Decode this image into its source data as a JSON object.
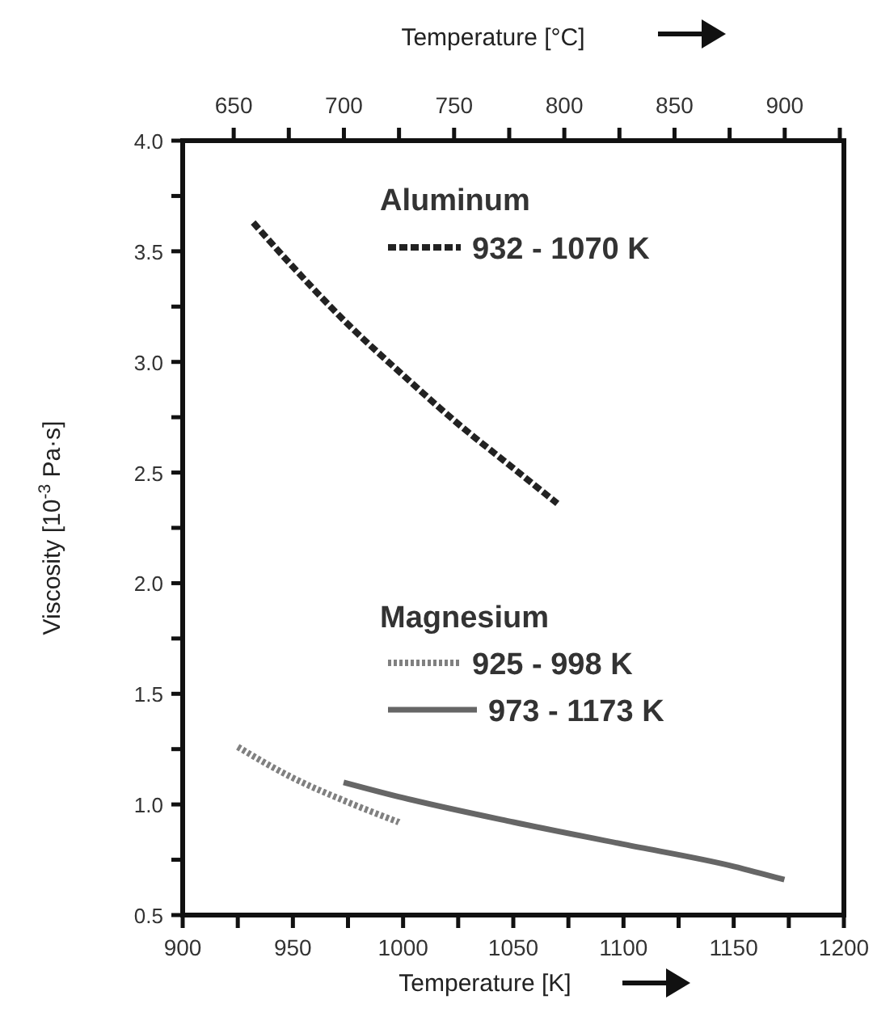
{
  "chart_data": {
    "type": "line",
    "xlabel": "Temperature [K]",
    "ylabel": "Viscosity [10$^{-3}$ Pa·s]",
    "x2label": "Temperature [°C]",
    "xlim": [
      900,
      1200
    ],
    "xticks": [
      900,
      {
        "value": 925,
        "label": null
      },
      950,
      {
        "value": 975,
        "label": null
      },
      1000,
      {
        "value": 1025,
        "label": null
      },
      1050,
      {
        "value": 1075,
        "label": null
      },
      1100,
      {
        "value": 1125,
        "label": null
      },
      1150,
      {
        "value": 1175,
        "label": null
      },
      1200
    ],
    "x2lim": [
      626.85,
      926.85
    ],
    "x2ticks": [
      650,
      {
        "value": 675,
        "label": null
      },
      700,
      {
        "value": 725,
        "label": null
      },
      750,
      {
        "value": 775,
        "label": null
      },
      800,
      {
        "value": 825,
        "label": null
      },
      850,
      {
        "value": 875,
        "label": null
      },
      900,
      {
        "value": 925,
        "label": null
      }
    ],
    "ylim": [
      0.5,
      4.0
    ],
    "yticks": [
      "0.5",
      {
        "value": 0.75,
        "label": null
      },
      {
        "value": 1.0,
        "label": "1.0"
      },
      {
        "value": 1.25,
        "label": null
      },
      1.5,
      {
        "value": 1.75,
        "label": null
      },
      {
        "value": 2.0,
        "label": "2.0"
      },
      {
        "value": 2.25,
        "label": null
      },
      2.5,
      {
        "value": 2.75,
        "label": null
      },
      {
        "value": 3.0,
        "label": "3.0"
      },
      {
        "value": 3.25,
        "label": null
      },
      3.5,
      {
        "value": 3.75,
        "label": null
      },
      {
        "value": 4.0,
        "label": "4.0"
      }
    ],
    "legend": "right",
    "grid": false,
    "marker": "none",
    "annotations": [
      "Aluminum",
      "Magnesium"
    ],
    "series": [
      {
        "name": "932 - 1070 K",
        "color": "#222222",
        "line_style": "dashed",
        "x": [
          932,
          950,
          975,
          1000,
          1025,
          1050,
          1070
        ],
        "values": [
          3.63,
          3.43,
          3.17,
          2.94,
          2.72,
          2.52,
          2.36
        ]
      },
      {
        "name": "925 - 998 K",
        "color": "#808080",
        "line_style": "dotted",
        "x": [
          925,
          950,
          975,
          998
        ],
        "values": [
          1.26,
          1.12,
          1.01,
          0.92
        ]
      },
      {
        "name": "973 - 1173 K",
        "color": "#666666",
        "line_style": "solid",
        "x": [
          973,
          1000,
          1050,
          1100,
          1150,
          1173
        ],
        "values": [
          1.1,
          1.03,
          0.92,
          0.82,
          0.72,
          0.66
        ]
      }
    ]
  }
}
